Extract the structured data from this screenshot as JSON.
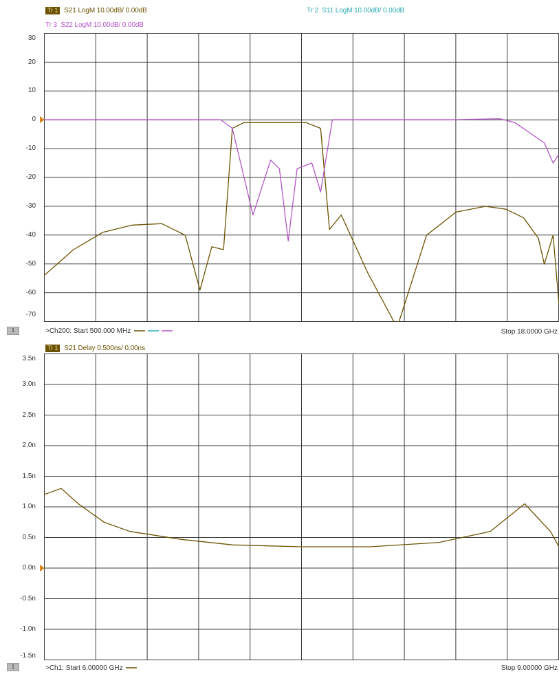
{
  "top_panel": {
    "traces": [
      {
        "id": "Tr 1",
        "label": "S21 LogM 10.00dB/  0.00dB",
        "color": "#6b5200"
      },
      {
        "id": "Tr 2",
        "label": "S11 LogM 10.00dB/  0.00dB",
        "color": "#2aa9b2"
      },
      {
        "id": "Tr 3",
        "label": "S22 LogM 10.00dB/  0.00dB",
        "color": "#b455c8"
      }
    ],
    "y_ticks": [
      "30",
      "20",
      "10",
      "0",
      "-10",
      "-20",
      "-30",
      "-40",
      "-50",
      "-60",
      "-70"
    ],
    "window_number": "1",
    "footer_left": ">Ch200:  Start   500.000 MHz",
    "footer_right": "Stop  18.0000 GHz"
  },
  "bottom_panel": {
    "traces": [
      {
        "id": "Tr 1",
        "label": "S21 Delay 0.500ns/  0.00ns",
        "color": "#6b5200"
      }
    ],
    "y_ticks": [
      "3.5n",
      "3.0n",
      "2.5n",
      "2.0n",
      "1.5n",
      "1.0n",
      "0.5n",
      "0.0n",
      "-0.5n",
      "-1.0n",
      "-1.5n"
    ],
    "window_number": "1",
    "footer_left": ">Ch1:  Start   6.00000 GHz",
    "footer_right": "Stop  9.00000 GHz"
  },
  "chart_data": [
    {
      "type": "line",
      "ylim": [
        -70,
        30
      ],
      "xlim": [
        0.5,
        18.0
      ],
      "x_unit": "GHz",
      "series": [
        {
          "name": "S21",
          "x": [
            0.5,
            1.5,
            2.5,
            3.5,
            4.5,
            5.3,
            5.8,
            6.2,
            6.6,
            6.9,
            7.3,
            8.0,
            8.8,
            9.4,
            9.9,
            10.2,
            10.6,
            11.5,
            12.5,
            13.5,
            14.5,
            15.5,
            16.2,
            16.8,
            17.3,
            17.5,
            17.8,
            18.0
          ],
          "y": [
            -54,
            -45,
            -39,
            -36.5,
            -36,
            -40,
            -59,
            -44,
            -45,
            -3,
            -1,
            -1,
            -1,
            -1,
            -3,
            -38,
            -33,
            -53,
            -72,
            -40,
            -32,
            -30,
            -31,
            -34,
            -41,
            -50,
            -40,
            -64
          ]
        },
        {
          "name": "S11",
          "x": [
            0.5,
            18.0
          ],
          "y": [
            -71,
            -71
          ]
        },
        {
          "name": "S22",
          "x": [
            0.5,
            4.0,
            6.5,
            6.9,
            7.3,
            7.6,
            8.2,
            8.5,
            8.8,
            9.1,
            9.6,
            9.9,
            10.3,
            12.0,
            14.5,
            16.0,
            16.5,
            17.5,
            17.8,
            18.0
          ],
          "y": [
            0,
            0,
            0,
            -3,
            -20,
            -33,
            -14,
            -17,
            -42,
            -17,
            -15,
            -25,
            0,
            0,
            0,
            0.3,
            -1,
            -8,
            -15,
            -12
          ]
        }
      ]
    },
    {
      "type": "line",
      "ylim": [
        -1.5,
        3.5
      ],
      "xlim": [
        6.0,
        9.0
      ],
      "x_unit": "GHz",
      "y_unit": "ns",
      "series": [
        {
          "name": "S21",
          "x": [
            6.0,
            6.1,
            6.2,
            6.35,
            6.5,
            6.8,
            7.1,
            7.5,
            7.9,
            8.3,
            8.6,
            8.8,
            8.95,
            9.0
          ],
          "y": [
            1.2,
            1.3,
            1.05,
            0.75,
            0.6,
            0.47,
            0.38,
            0.35,
            0.35,
            0.42,
            0.6,
            1.05,
            0.6,
            0.35
          ]
        }
      ]
    }
  ]
}
